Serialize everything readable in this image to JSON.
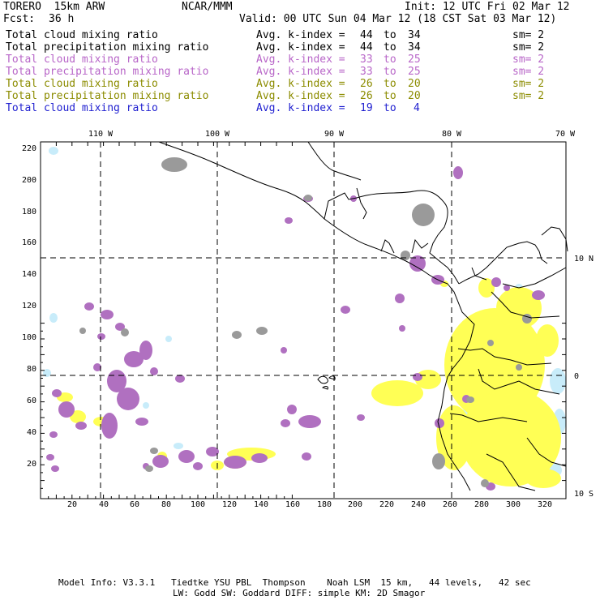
{
  "header": {
    "model": "TORERO  15km ARW",
    "org": "NCAR/MMM",
    "init": "Init: 12 UTC Fri 02 Mar 12",
    "fcst_label": "Fcst:",
    "fcst_value": "36 h",
    "valid": "Valid: 00 UTC Sun 04 Mar 12 (18 CST Sat 03 Mar 12)"
  },
  "legend": [
    {
      "label": "Total cloud mixing ratio",
      "kindex": "Avg. k-index =",
      "from": "44",
      "to_word": "to",
      "to": "34",
      "sm": "sm= 2",
      "color": "#000000"
    },
    {
      "label": "Total precipitation mixing ratio",
      "kindex": "Avg. k-index =",
      "from": "44",
      "to_word": "to",
      "to": "34",
      "sm": "sm= 2",
      "color": "#000000"
    },
    {
      "label": "Total cloud mixing ratio",
      "kindex": "Avg. k-index =",
      "from": "33",
      "to_word": "to",
      "to": "25",
      "sm": "sm= 2",
      "color": "#b866c8"
    },
    {
      "label": "Total precipitation mixing ratio",
      "kindex": "Avg. k-index =",
      "from": "33",
      "to_word": "to",
      "to": "25",
      "sm": "sm= 2",
      "color": "#b866c8"
    },
    {
      "label": "Total cloud mixing ratio",
      "kindex": "Avg. k-index =",
      "from": "26",
      "to_word": "to",
      "to": "20",
      "sm": "sm= 2",
      "color": "#8c8c00"
    },
    {
      "label": "Total precipitation mixing ratio",
      "kindex": "Avg. k-index =",
      "from": "26",
      "to_word": "to",
      "to": "20",
      "sm": "sm= 2",
      "color": "#8c8c00"
    },
    {
      "label": "Total cloud mixing ratio",
      "kindex": "Avg. k-index =",
      "from": "19",
      "to_word": "to",
      "to": "4",
      "sm": "",
      "color": "#1f1fd0"
    }
  ],
  "map": {
    "lon_labels": [
      "110 W",
      "100 W",
      "90 W",
      "80 W",
      "70 W"
    ],
    "lat_labels": [
      "10 N",
      "0",
      "10 S"
    ],
    "y_ticks": [
      "220",
      "200",
      "180",
      "160",
      "140",
      "120",
      "100",
      "80",
      "60",
      "40",
      "20"
    ],
    "x_ticks": [
      "20",
      "40",
      "60",
      "80",
      "100",
      "120",
      "140",
      "160",
      "180",
      "200",
      "220",
      "240",
      "260",
      "280",
      "300",
      "320"
    ],
    "colors": {
      "gray": "#9a9a9a",
      "purple": "#b070c0",
      "yellow": "#ffff55",
      "light_blue": "#c8ecfa",
      "grid": "#000000"
    }
  },
  "footer": {
    "line1": "Model Info: V3.3.1   Tiedtke YSU PBL  Thompson    Noah LSM  15 km,   44 levels,   42 sec",
    "line2": "LW: Godd SW: Goddard DIFF: simple KM: 2D Smagor"
  }
}
